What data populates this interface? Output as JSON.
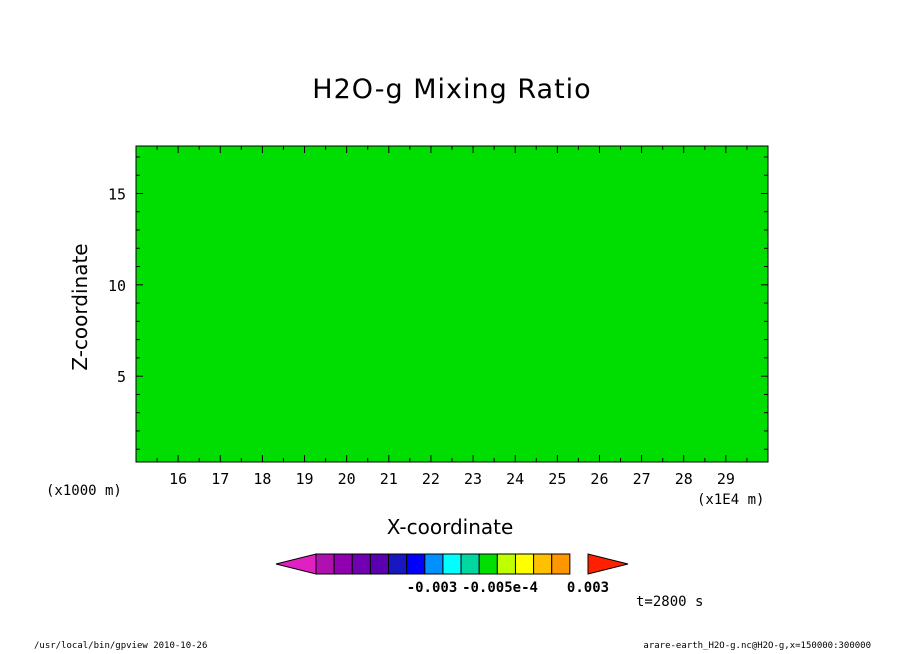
{
  "chart_data": {
    "type": "heatmap",
    "title": "H2O-g Mixing Ratio",
    "xlabel": "X-coordinate",
    "ylabel": "Z-coordinate",
    "x_units_label": "(x1E4 m)",
    "y_units_label": "(x1000 m)",
    "x_ticks": [
      "16",
      "17",
      "18",
      "19",
      "20",
      "21",
      "22",
      "23",
      "24",
      "25",
      "26",
      "27",
      "28",
      "29"
    ],
    "y_ticks": [
      "5",
      "10",
      "15"
    ],
    "xlim": [
      15.0,
      30.0
    ],
    "ylim": [
      0.3,
      17.6
    ],
    "time_label": "t=2800 s",
    "colorbar": {
      "labels": [
        "-0.003",
        "-0.005e-4",
        "0.003"
      ],
      "colors": [
        "#e020c0",
        "#b010b0",
        "#9000b0",
        "#7000b0",
        "#5a00b0",
        "#1818c0",
        "#0000ff",
        "#0090ff",
        "#00ffff",
        "#00d8a0",
        "#00e000",
        "#c0ff00",
        "#ffff00",
        "#ffc000",
        "#ff9800",
        "#ff2000"
      ]
    },
    "colors": {
      "green": "#00dd00",
      "yellow": "#ffff00",
      "light_orange": "#ffc000",
      "orange": "#ff9800",
      "cyan": "#00ffff",
      "sky": "#00a0ff",
      "blue": "#0000ff",
      "dark_blue": "#1818c0",
      "purple": "#7000b0",
      "magenta": "#b010b0"
    }
  },
  "footer": {
    "left": "/usr/local/bin/gpview  2010-10-26",
    "right": "arare-earth_H2O-g.nc@H2O-g,x=150000:300000"
  }
}
